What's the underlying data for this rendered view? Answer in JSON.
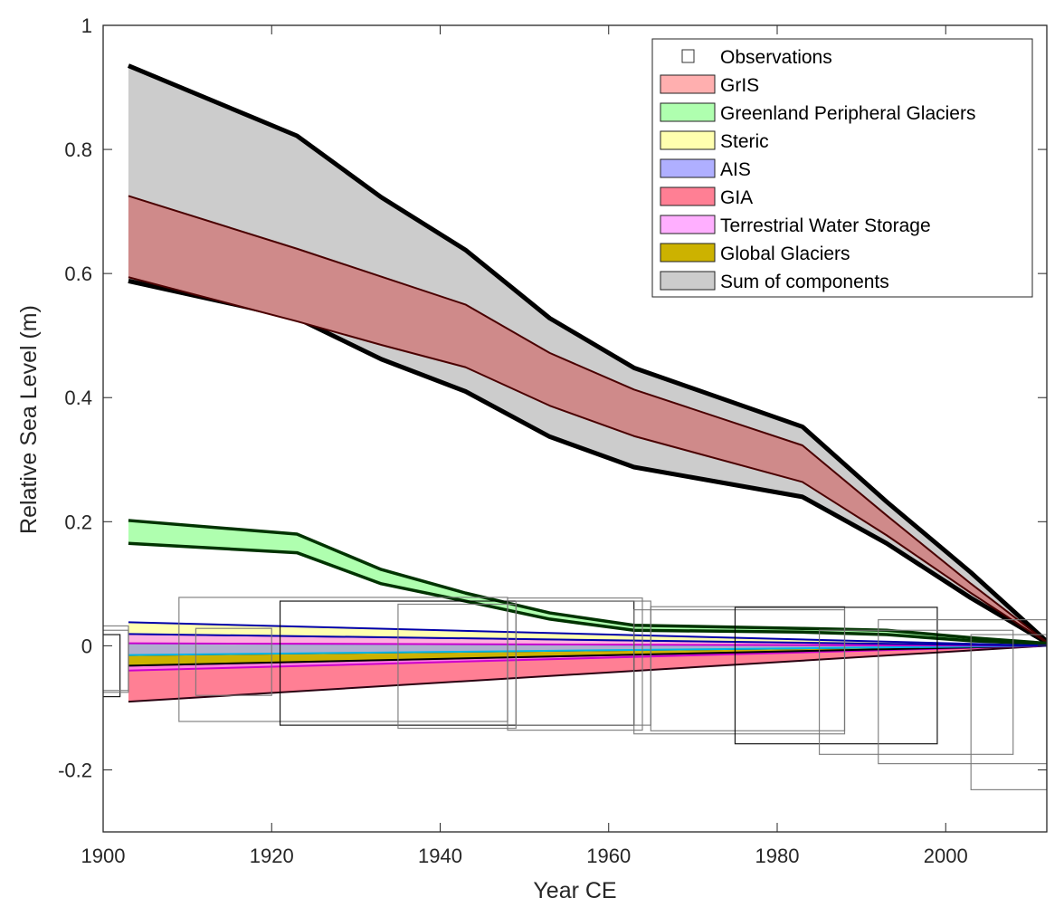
{
  "chart_data": {
    "type": "area",
    "title": "",
    "xlabel": "Year CE",
    "ylabel": "Relative Sea Level (m)",
    "xlim": [
      1900,
      2012
    ],
    "ylim": [
      -0.3,
      1.0
    ],
    "xticks": [
      1900,
      1920,
      1940,
      1960,
      1980,
      2000
    ],
    "xtick_labels": [
      "1900",
      "1920",
      "1940",
      "1960",
      "1980",
      "2000"
    ],
    "yticks": [
      -0.2,
      0,
      0.2,
      0.4,
      0.6,
      0.8,
      1.0
    ],
    "ytick_labels": [
      "-0.2",
      "0",
      "0.2",
      "0.4",
      "0.6",
      "0.8",
      "1"
    ],
    "grid": false,
    "legend_position": "top-right",
    "legend": [
      {
        "label": "Observations",
        "color": "#ffffff",
        "kind": "box"
      },
      {
        "label": "GrIS",
        "color": "#ffafaf",
        "kind": "patch"
      },
      {
        "label": "Greenland Peripheral Glaciers",
        "color": "#afffaf",
        "kind": "patch"
      },
      {
        "label": "Steric",
        "color": "#ffffaf",
        "kind": "patch"
      },
      {
        "label": "AIS",
        "color": "#afafff",
        "kind": "patch"
      },
      {
        "label": "GIA",
        "color": "#ff7f94",
        "kind": "patch"
      },
      {
        "label": "Terrestrial Water Storage",
        "color": "#ffafff",
        "kind": "patch"
      },
      {
        "label": "Global Glaciers",
        "color": "#ccb200",
        "kind": "patch"
      },
      {
        "label": "Sum of components",
        "color": "#cccccc",
        "kind": "patch"
      }
    ],
    "bands": [
      {
        "name": "Sum of components",
        "fill": "#cccccc",
        "edge": "#000000",
        "x": [
          1903,
          1923,
          1933,
          1943,
          1953,
          1963,
          1983,
          1993,
          2003,
          2012
        ],
        "lower": [
          0.588,
          0.528,
          0.462,
          0.41,
          0.337,
          0.288,
          0.24,
          0.165,
          0.077,
          0.005
        ],
        "upper": [
          0.935,
          0.822,
          0.723,
          0.638,
          0.528,
          0.448,
          0.353,
          0.232,
          0.118,
          0.007
        ]
      },
      {
        "name": "GrIS",
        "fill": "#cf8a8a",
        "edge": "#4a0000",
        "x": [
          1903,
          1923,
          1933,
          1943,
          1953,
          1963,
          1983,
          1993,
          2003,
          2012
        ],
        "lower": [
          0.594,
          0.523,
          0.485,
          0.449,
          0.387,
          0.338,
          0.264,
          0.178,
          0.085,
          0.005
        ],
        "upper": [
          0.725,
          0.64,
          0.595,
          0.55,
          0.472,
          0.413,
          0.323,
          0.21,
          0.1,
          0.006
        ]
      },
      {
        "name": "Greenland Peripheral Glaciers",
        "fill": "#afffaf",
        "edge": "#003300",
        "x": [
          1903,
          1923,
          1933,
          1943,
          1953,
          1963,
          1983,
          1993,
          2003,
          2012
        ],
        "lower": [
          0.165,
          0.15,
          0.1,
          0.072,
          0.043,
          0.025,
          0.022,
          0.018,
          0.008,
          0.003
        ],
        "upper": [
          0.202,
          0.18,
          0.123,
          0.085,
          0.053,
          0.033,
          0.028,
          0.025,
          0.013,
          0.004
        ]
      },
      {
        "name": "GIA",
        "fill": "#ff7f94",
        "edge": "#000000",
        "x": [
          1903,
          2012
        ],
        "lower": [
          -0.09,
          0.0
        ],
        "upper": [
          -0.035,
          0.0
        ]
      },
      {
        "name": "Terrestrial Water Storage (lower)",
        "fill": "#ff7fe0",
        "edge": "#cc00cc",
        "x": [
          1903,
          2012
        ],
        "lower": [
          -0.04,
          0.0
        ],
        "upper": [
          -0.032,
          0.0
        ]
      },
      {
        "name": "Global Glaciers",
        "fill": "#ccb200",
        "edge": "#000000",
        "x": [
          1903,
          2012
        ],
        "lower": [
          -0.032,
          0.0
        ],
        "upper": [
          -0.015,
          0.0
        ]
      },
      {
        "name": "AIS",
        "fill": "#afafcf",
        "edge": "#00b4e6",
        "x": [
          1903,
          2012
        ],
        "lower": [
          -0.015,
          0.0
        ],
        "upper": [
          0.004,
          0.0
        ]
      },
      {
        "name": "Terrestrial Water Storage",
        "fill": "#ffafdf",
        "edge": "#cc00cc",
        "x": [
          1903,
          2012
        ],
        "lower": [
          0.004,
          0.0
        ],
        "upper": [
          0.019,
          0.0
        ]
      },
      {
        "name": "Steric",
        "fill": "#ffffaf",
        "edge": "#0000aa",
        "x": [
          1903,
          2012
        ],
        "lower": [
          0.019,
          0.0
        ],
        "upper": [
          0.038,
          0.0
        ]
      }
    ],
    "observations": [
      {
        "x0": 1898,
        "x1": 1902,
        "y0": -0.082,
        "y1": 0.018,
        "stroke": "#000000"
      },
      {
        "x0": 1898,
        "x1": 1903,
        "y0": -0.075,
        "y1": 0.025,
        "stroke": "#777777"
      },
      {
        "x0": 1898,
        "x1": 1903,
        "y0": -0.072,
        "y1": 0.032,
        "stroke": "#777777"
      },
      {
        "x0": 1909,
        "x1": 1948,
        "y0": -0.122,
        "y1": 0.078,
        "stroke": "#777777"
      },
      {
        "x0": 1911,
        "x1": 1920,
        "y0": -0.08,
        "y1": 0.028,
        "stroke": "#777777"
      },
      {
        "x0": 1921,
        "x1": 1963,
        "y0": -0.128,
        "y1": 0.072,
        "stroke": "#000000"
      },
      {
        "x0": 1935,
        "x1": 1949,
        "y0": -0.133,
        "y1": 0.067,
        "stroke": "#777777"
      },
      {
        "x0": 1948,
        "x1": 1964,
        "y0": -0.136,
        "y1": 0.077,
        "stroke": "#777777"
      },
      {
        "x0": 1949,
        "x1": 1965,
        "y0": -0.128,
        "y1": 0.072,
        "stroke": "#777777"
      },
      {
        "x0": 1965,
        "x1": 1988,
        "y0": -0.137,
        "y1": 0.063,
        "stroke": "#777777"
      },
      {
        "x0": 1963,
        "x1": 1988,
        "y0": -0.142,
        "y1": 0.058,
        "stroke": "#777777"
      },
      {
        "x0": 1975,
        "x1": 1999,
        "y0": -0.158,
        "y1": 0.062,
        "stroke": "#000000"
      },
      {
        "x0": 1985,
        "x1": 2008,
        "y0": -0.175,
        "y1": 0.025,
        "stroke": "#777777"
      },
      {
        "x0": 1992,
        "x1": 2012,
        "y0": -0.19,
        "y1": 0.042,
        "stroke": "#777777"
      },
      {
        "x0": 2003,
        "x1": 2012,
        "y0": -0.232,
        "y1": 0.018,
        "stroke": "#777777"
      }
    ]
  }
}
